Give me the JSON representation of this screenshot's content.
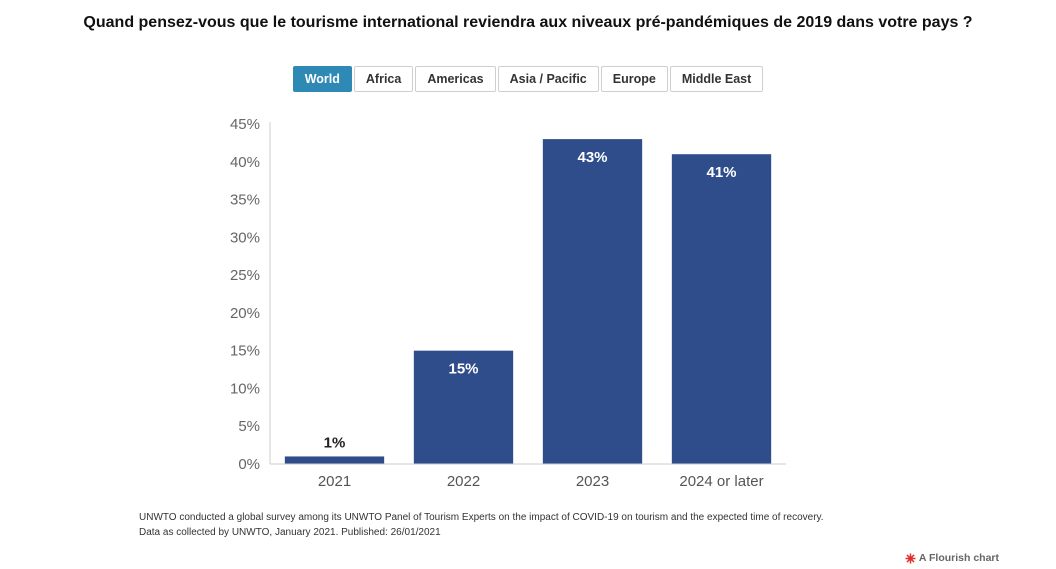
{
  "title": "Quand pensez-vous que le tourisme international reviendra aux niveaux pré-pandémiques de 2019 dans votre pays ?",
  "tabs": [
    {
      "label": "World",
      "active": true
    },
    {
      "label": "Africa",
      "active": false
    },
    {
      "label": "Americas",
      "active": false
    },
    {
      "label": "Asia / Pacific",
      "active": false
    },
    {
      "label": "Europe",
      "active": false
    },
    {
      "label": "Middle East",
      "active": false
    }
  ],
  "chart_data": {
    "type": "bar",
    "categories": [
      "2021",
      "2022",
      "2023",
      "2024 or later"
    ],
    "values": [
      1,
      15,
      43,
      41
    ],
    "data_labels": [
      "1%",
      "15%",
      "43%",
      "41%"
    ],
    "ylim": [
      0,
      45
    ],
    "yticks": [
      0,
      5,
      10,
      15,
      20,
      25,
      30,
      35,
      40,
      45
    ],
    "ytick_labels": [
      "0%",
      "5%",
      "10%",
      "15%",
      "20%",
      "25%",
      "30%",
      "35%",
      "40%",
      "45%"
    ],
    "bar_color": "#2e4d8a",
    "grid": false,
    "xlabel": "",
    "ylabel": ""
  },
  "footer": {
    "line1": "UNWTO conducted a global survey among its UNWTO Panel of Tourism Experts on the impact of COVID-19 on tourism and the expected time of recovery.",
    "line2": "Data as collected by UNWTO, January 2021. Published: 26/01/2021"
  },
  "branding": {
    "label": "A Flourish chart",
    "icon": "flourish-logo-icon",
    "icon_color": "#e0312f"
  }
}
